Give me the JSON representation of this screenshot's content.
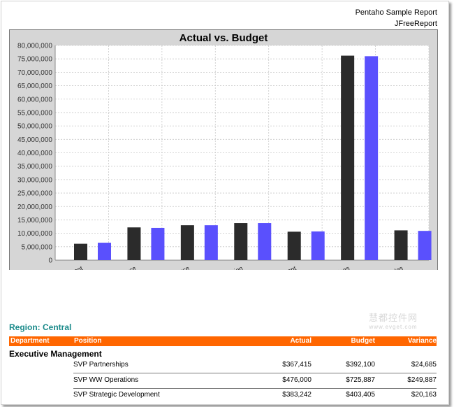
{
  "header": {
    "line1": "Pentaho Sample Report",
    "line2": "JFreeReport"
  },
  "chart_data": {
    "type": "bar",
    "title": "Actual vs. Budget",
    "categories": [
      "…ment",
      "…nce",
      "…rce",
      "…ation",
      "…ment",
      "…ices",
      "…ales"
    ],
    "series": [
      {
        "values": [
          6100000,
          12200000,
          13000000,
          13800000,
          10600000,
          76200000,
          11100000
        ]
      },
      {
        "values": [
          6500000,
          12000000,
          13000000,
          13800000,
          10700000,
          76000000,
          10900000
        ]
      }
    ],
    "colors": [
      "#2b2b2b",
      "#5a50fd"
    ],
    "ylim": [
      0,
      80000000
    ],
    "ytick_step": 5000000,
    "grid": true,
    "plot_background": "#ffffff",
    "frame_background": "#d6d6d6"
  },
  "watermark": {
    "text": "慧都控件网",
    "sub": "www.evget.com"
  },
  "report": {
    "region_title": "Region: Central",
    "columns": {
      "department": "Department",
      "position": "Position",
      "actual": "Actual",
      "budget": "Budget",
      "variance": "Variance"
    },
    "department_name": "Executive Management",
    "rows": [
      {
        "position": "SVP Partnerships",
        "actual": "$367,415",
        "budget": "$392,100",
        "variance": "$24,685"
      },
      {
        "position": "SVP WW Operations",
        "actual": "$476,000",
        "budget": "$725,887",
        "variance": "$249,887"
      },
      {
        "position": "SVP Strategic Development",
        "actual": "$383,242",
        "budget": "$403,405",
        "variance": "$20,163"
      }
    ],
    "header_color": "#ff6600",
    "region_color": "#1a8a8a"
  }
}
